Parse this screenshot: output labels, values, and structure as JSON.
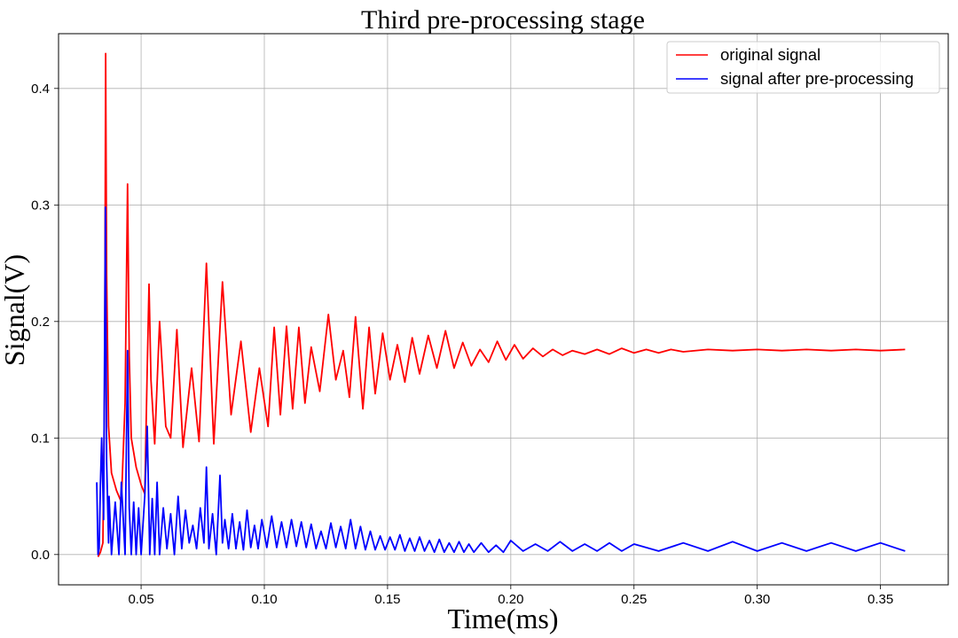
{
  "chart_data": {
    "type": "line",
    "title": "Third pre-processing stage",
    "xlabel": "Time(ms)",
    "ylabel": "Signal(V)",
    "xlim": [
      0.0165,
      0.3775
    ],
    "ylim": [
      -0.026,
      0.447
    ],
    "xticks": [
      0.05,
      0.1,
      0.15,
      0.2,
      0.25,
      0.3,
      0.35
    ],
    "xtick_labels": [
      "0.05",
      "0.10",
      "0.15",
      "0.20",
      "0.25",
      "0.30",
      "0.35"
    ],
    "yticks": [
      0.0,
      0.1,
      0.2,
      0.3,
      0.4
    ],
    "ytick_labels": [
      "0.0",
      "0.1",
      "0.2",
      "0.3",
      "0.4"
    ],
    "grid": true,
    "legend_position": "top-right",
    "series": [
      {
        "name": "original signal",
        "color": "#ff0000",
        "x": [
          0.0325,
          0.0335,
          0.0345,
          0.0352,
          0.0356,
          0.036,
          0.0368,
          0.038,
          0.04,
          0.042,
          0.0435,
          0.0445,
          0.0452,
          0.046,
          0.048,
          0.05,
          0.0515,
          0.0525,
          0.0532,
          0.054,
          0.0555,
          0.0575,
          0.06,
          0.062,
          0.0645,
          0.067,
          0.0705,
          0.0735,
          0.0765,
          0.0795,
          0.083,
          0.0865,
          0.0905,
          0.0945,
          0.098,
          0.1015,
          0.104,
          0.1065,
          0.109,
          0.1115,
          0.114,
          0.1165,
          0.119,
          0.1225,
          0.126,
          0.129,
          0.132,
          0.1345,
          0.137,
          0.14,
          0.1425,
          0.145,
          0.148,
          0.151,
          0.154,
          0.157,
          0.16,
          0.163,
          0.1665,
          0.17,
          0.1735,
          0.177,
          0.1805,
          0.184,
          0.1875,
          0.191,
          0.1945,
          0.198,
          0.2015,
          0.205,
          0.209,
          0.213,
          0.217,
          0.221,
          0.225,
          0.23,
          0.235,
          0.24,
          0.245,
          0.25,
          0.255,
          0.26,
          0.265,
          0.27,
          0.28,
          0.29,
          0.3,
          0.31,
          0.32,
          0.33,
          0.34,
          0.35,
          0.36
        ],
        "values": [
          -0.002,
          0.002,
          0.01,
          0.15,
          0.43,
          0.24,
          0.11,
          0.07,
          0.055,
          0.045,
          0.13,
          0.318,
          0.17,
          0.1,
          0.075,
          0.06,
          0.052,
          0.16,
          0.232,
          0.15,
          0.095,
          0.2,
          0.11,
          0.1,
          0.193,
          0.092,
          0.16,
          0.097,
          0.25,
          0.095,
          0.234,
          0.12,
          0.183,
          0.105,
          0.16,
          0.11,
          0.195,
          0.12,
          0.196,
          0.125,
          0.195,
          0.13,
          0.178,
          0.14,
          0.206,
          0.15,
          0.175,
          0.135,
          0.204,
          0.125,
          0.195,
          0.138,
          0.19,
          0.15,
          0.18,
          0.148,
          0.186,
          0.155,
          0.188,
          0.16,
          0.192,
          0.16,
          0.182,
          0.162,
          0.176,
          0.165,
          0.183,
          0.167,
          0.18,
          0.168,
          0.177,
          0.17,
          0.176,
          0.171,
          0.175,
          0.172,
          0.176,
          0.172,
          0.177,
          0.173,
          0.176,
          0.173,
          0.176,
          0.174,
          0.176,
          0.175,
          0.176,
          0.175,
          0.176,
          0.175,
          0.176,
          0.175,
          0.176
        ]
      },
      {
        "name": "signal after pre-processing",
        "color": "#0000ff",
        "x": [
          0.032,
          0.0325,
          0.033,
          0.0335,
          0.034,
          0.0348,
          0.0355,
          0.036,
          0.0368,
          0.037,
          0.038,
          0.0395,
          0.041,
          0.042,
          0.0435,
          0.0445,
          0.0452,
          0.046,
          0.047,
          0.048,
          0.049,
          0.05,
          0.0515,
          0.0525,
          0.0535,
          0.0545,
          0.0555,
          0.0565,
          0.0575,
          0.059,
          0.0605,
          0.062,
          0.0635,
          0.065,
          0.0665,
          0.068,
          0.0695,
          0.071,
          0.0725,
          0.074,
          0.0755,
          0.0765,
          0.0775,
          0.079,
          0.0805,
          0.082,
          0.083,
          0.084,
          0.0855,
          0.087,
          0.0885,
          0.09,
          0.0915,
          0.093,
          0.0945,
          0.096,
          0.0975,
          0.099,
          0.101,
          0.103,
          0.105,
          0.107,
          0.109,
          0.111,
          0.113,
          0.115,
          0.117,
          0.119,
          0.121,
          0.123,
          0.125,
          0.127,
          0.129,
          0.131,
          0.133,
          0.135,
          0.137,
          0.139,
          0.141,
          0.143,
          0.145,
          0.147,
          0.149,
          0.151,
          0.153,
          0.155,
          0.157,
          0.159,
          0.161,
          0.163,
          0.165,
          0.167,
          0.169,
          0.171,
          0.173,
          0.175,
          0.177,
          0.179,
          0.181,
          0.183,
          0.185,
          0.188,
          0.191,
          0.194,
          0.197,
          0.2,
          0.205,
          0.21,
          0.215,
          0.22,
          0.225,
          0.23,
          0.235,
          0.24,
          0.245,
          0.25,
          0.26,
          0.27,
          0.28,
          0.29,
          0.3,
          0.31,
          0.32,
          0.33,
          0.34,
          0.35,
          0.36
        ],
        "values": [
          0.062,
          0.0,
          0.005,
          0.06,
          0.1,
          0.03,
          0.298,
          0.08,
          0.01,
          0.05,
          0.0,
          0.045,
          0.0,
          0.062,
          0.0,
          0.175,
          0.04,
          0.0,
          0.045,
          0.0,
          0.04,
          0.0,
          0.05,
          0.11,
          0.0,
          0.048,
          0.0,
          0.062,
          0.0,
          0.04,
          0.005,
          0.035,
          0.0,
          0.05,
          0.005,
          0.038,
          0.01,
          0.025,
          0.005,
          0.04,
          0.01,
          0.075,
          0.005,
          0.035,
          0.0,
          0.068,
          0.01,
          0.03,
          0.005,
          0.035,
          0.005,
          0.028,
          0.004,
          0.038,
          0.006,
          0.025,
          0.005,
          0.03,
          0.006,
          0.033,
          0.006,
          0.028,
          0.006,
          0.03,
          0.007,
          0.028,
          0.006,
          0.026,
          0.005,
          0.02,
          0.005,
          0.027,
          0.006,
          0.024,
          0.005,
          0.03,
          0.005,
          0.024,
          0.004,
          0.02,
          0.004,
          0.016,
          0.004,
          0.015,
          0.004,
          0.017,
          0.003,
          0.014,
          0.003,
          0.015,
          0.003,
          0.012,
          0.002,
          0.013,
          0.002,
          0.01,
          0.002,
          0.011,
          0.002,
          0.009,
          0.002,
          0.01,
          0.002,
          0.008,
          0.002,
          0.012,
          0.003,
          0.009,
          0.003,
          0.011,
          0.003,
          0.009,
          0.003,
          0.01,
          0.003,
          0.009,
          0.003,
          0.01,
          0.003,
          0.011,
          0.003,
          0.01,
          0.003,
          0.01,
          0.003,
          0.01,
          0.003
        ]
      }
    ]
  }
}
